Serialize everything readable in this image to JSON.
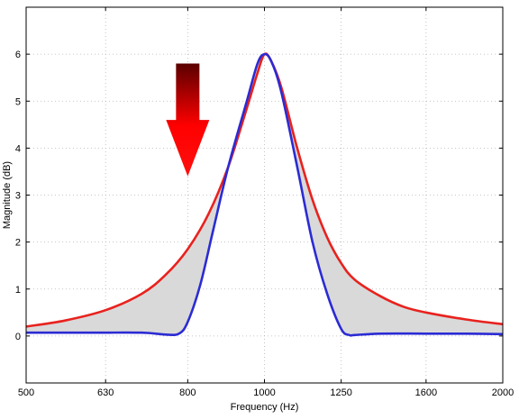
{
  "chart_data": {
    "type": "line",
    "xlabel": "Frequency (Hz)",
    "ylabel": "Magnitude (dB)",
    "x_scale": "log",
    "xlim": [
      500,
      2000
    ],
    "ylim": [
      -1,
      7
    ],
    "x_ticks": [
      500,
      630,
      800,
      1000,
      1250,
      1600,
      2000
    ],
    "x_tick_labels": [
      "500",
      "630",
      "800",
      "1000",
      "1250",
      "1600",
      "2000"
    ],
    "y_ticks": [
      0,
      1,
      2,
      3,
      4,
      5,
      6
    ],
    "y_tick_labels": [
      "0",
      "1",
      "2",
      "3",
      "4",
      "5",
      "6"
    ],
    "grid": true,
    "fill_between_series": true,
    "fill_color": "#d9d9d9",
    "arrow": {
      "x": 800,
      "y_top": 5.8,
      "y_bottom": 3.4,
      "direction": "down",
      "color": "#ff0000"
    },
    "series": [
      {
        "color": "#e8221e",
        "x": [
          500,
          560,
          630,
          700,
          750,
          800,
          850,
          900,
          950,
          980,
          1000,
          1020,
          1050,
          1100,
          1150,
          1200,
          1250,
          1300,
          1400,
          1500,
          1600,
          1800,
          2000
        ],
        "y": [
          0.2,
          0.33,
          0.55,
          0.9,
          1.3,
          1.85,
          2.6,
          3.6,
          4.85,
          5.6,
          6.0,
          5.85,
          5.3,
          4.0,
          2.9,
          2.1,
          1.55,
          1.2,
          0.85,
          0.62,
          0.5,
          0.35,
          0.25
        ]
      },
      {
        "color": "#2b2bd4",
        "x": [
          500,
          600,
          700,
          750,
          780,
          800,
          830,
          860,
          900,
          950,
          980,
          1000,
          1020,
          1050,
          1100,
          1150,
          1200,
          1250,
          1280,
          1300,
          1400,
          1600,
          1800,
          2000
        ],
        "y": [
          0.07,
          0.07,
          0.07,
          0.03,
          0.05,
          0.3,
          1.1,
          2.2,
          3.6,
          5.0,
          5.8,
          6.0,
          5.85,
          5.2,
          3.6,
          2.0,
          0.9,
          0.15,
          0.02,
          0.02,
          0.05,
          0.05,
          0.05,
          0.04
        ]
      }
    ]
  }
}
